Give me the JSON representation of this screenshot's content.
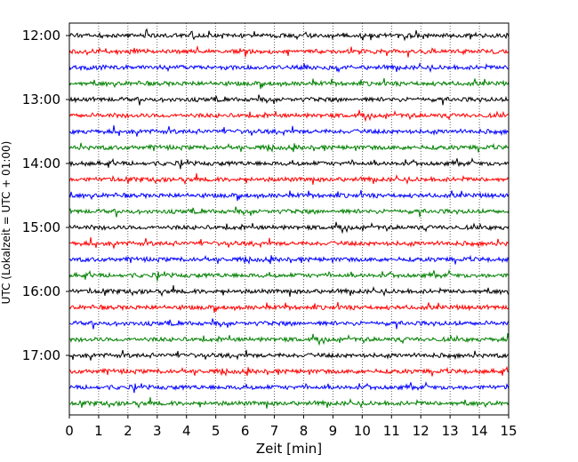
{
  "chart_data": {
    "type": "line",
    "title": "",
    "xlabel": "Zeit  [min]",
    "ylabel": "UTC (Lokalzeit = UTC + 01:00)",
    "xlim": [
      0,
      15
    ],
    "x_ticks": [
      "0",
      "1",
      "2",
      "3",
      "4",
      "5",
      "6",
      "7",
      "8",
      "9",
      "10",
      "11",
      "12",
      "13",
      "14",
      "15"
    ],
    "y_tick_labels": [
      "12:00",
      "13:00",
      "14:00",
      "15:00",
      "16:00",
      "17:00"
    ],
    "grid": true,
    "trace_interval_minutes": 15,
    "trace_colors": [
      "#000000",
      "#ff0000",
      "#0000ff",
      "#008000"
    ],
    "traces": [
      {
        "time": "12:00"
      },
      {
        "time": "12:15"
      },
      {
        "time": "12:30"
      },
      {
        "time": "12:45"
      },
      {
        "time": "13:00"
      },
      {
        "time": "13:15"
      },
      {
        "time": "13:30"
      },
      {
        "time": "13:45"
      },
      {
        "time": "14:00"
      },
      {
        "time": "14:15"
      },
      {
        "time": "14:30"
      },
      {
        "time": "14:45"
      },
      {
        "time": "15:00"
      },
      {
        "time": "15:15"
      },
      {
        "time": "15:30"
      },
      {
        "time": "15:45"
      },
      {
        "time": "16:00"
      },
      {
        "time": "16:15"
      },
      {
        "time": "16:30"
      },
      {
        "time": "16:45"
      },
      {
        "time": "17:00"
      },
      {
        "time": "17:15"
      },
      {
        "time": "17:30"
      },
      {
        "time": "17:45"
      }
    ]
  }
}
